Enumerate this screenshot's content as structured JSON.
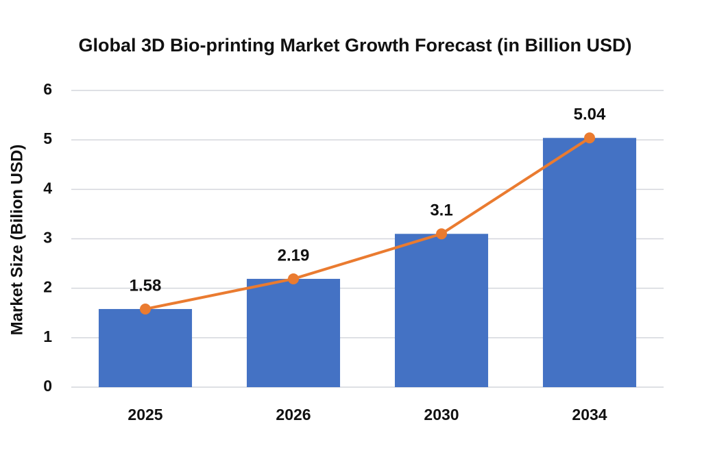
{
  "chart_data": {
    "type": "bar",
    "title": "Global 3D Bio-printing Market Growth Forecast (in Billion USD)",
    "y_label": "Market Size (Bilion USD)",
    "categories": [
      "2025",
      "2026",
      "2030",
      "2034"
    ],
    "series": [
      {
        "type": "bar",
        "color": "#4472c4",
        "values": [
          1.58,
          2.19,
          3.1,
          5.04
        ]
      },
      {
        "type": "line",
        "color": "#ea7b30",
        "values": [
          1.58,
          2.19,
          3.1,
          5.04
        ]
      }
    ],
    "ylim": [
      0,
      6
    ],
    "yticks": [
      0,
      1,
      2,
      3,
      4,
      5,
      6
    ],
    "grid": true
  }
}
